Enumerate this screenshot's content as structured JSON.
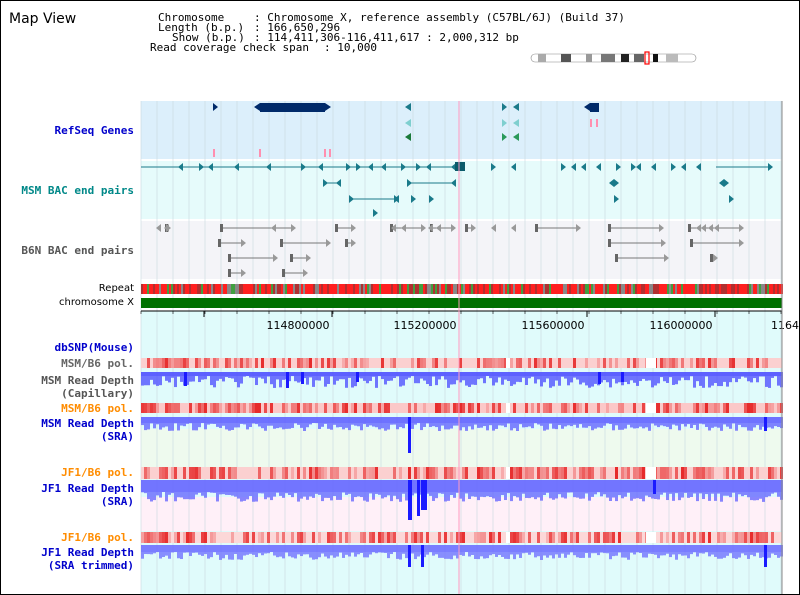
{
  "window": {
    "title": "Map View"
  },
  "info": {
    "chromosome_key": "Chromosome",
    "chromosome_val": ": Chromosome X, reference assembly (C57BL/6J) (Build 37)",
    "length_key": "Length (b.p.)",
    "length_val": ": 166,650,296",
    "show_key": "Show (b.p.)",
    "show_val": ": 114,411,306-116,411,617 : 2,000,312 bp",
    "coverage_key": "Read coverage check span",
    "coverage_val": ": 10,000"
  },
  "tracks": {
    "refseq": "RefSeq Genes",
    "msm_bac": "MSM BAC end pairs",
    "b6n_bac": "B6N BAC end pairs",
    "repeat": "Repeat",
    "chromosome": "chromosome X",
    "dbsnp": "dbSNP(Mouse)",
    "msm_b6_pol": "MSM/B6 pol.",
    "msm_read_depth_l1": "MSM Read Depth",
    "msm_read_depth_l2": "(Capillary)",
    "msm_b6_pol2": "MSM/B6 pol.",
    "msm_sra_l1": "MSM Read Depth",
    "msm_sra_l2": "(SRA)",
    "jf1_b6_pol": "JF1/B6 pol.",
    "jf1_sra_l1": "JF1 Read Depth",
    "jf1_sra_l2": "(SRA)",
    "jf1_b6_pol2": "JF1/B6 pol.",
    "jf1_trim_l1": "JF1 Read Depth",
    "jf1_trim_l2": "(SRA trimmed)"
  },
  "ruler": {
    "ticks": [
      "114800000",
      "115200000",
      "115600000",
      "116000000",
      "1164"
    ]
  },
  "colors": {
    "refseq_bg": "#dceffb",
    "bac_bg": "#e6fbfb",
    "b6n_bg": "#f4f4f8",
    "navy": "#002a6a",
    "teal": "#1a7a8a",
    "green": "#006600",
    "pink": "#ffb4c8",
    "depth_blue": "#3c3cff",
    "pol_orange": "#ff8c00"
  }
}
